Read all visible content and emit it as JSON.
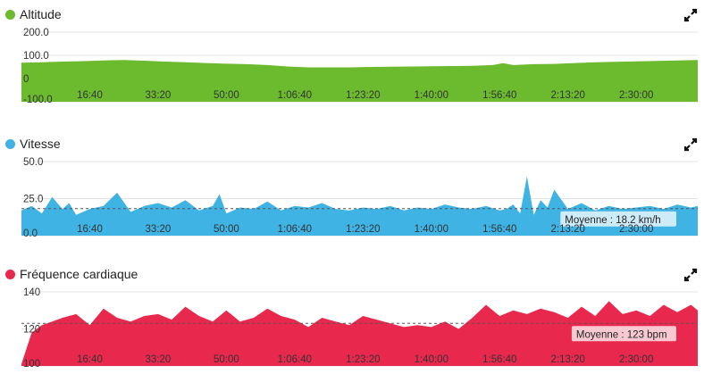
{
  "chart_data": [
    {
      "type": "area",
      "title": "Altitude",
      "color": "#6cba2d",
      "x_ticks": [
        "16:40",
        "33:20",
        "50:00",
        "1:06:40",
        "1:23:20",
        "1:40:00",
        "1:56:40",
        "2:13:20",
        "2:30:00"
      ],
      "y_ticks": [
        "200.0",
        "100.0",
        "0",
        "-100.0"
      ],
      "y_tick_values": [
        200,
        100,
        0,
        -100
      ],
      "ylim": [
        -100,
        200
      ],
      "x_range_seconds": [
        0,
        9900
      ],
      "x_tick_seconds": [
        1000,
        2000,
        3000,
        4000,
        5000,
        6000,
        7000,
        8000,
        9000
      ],
      "series": [
        {
          "x": [
            0,
            300,
            600,
            900,
            1200,
            1500,
            1800,
            2100,
            2400,
            2700,
            3000,
            3300,
            3600,
            3900,
            4200,
            4500,
            4800,
            5100,
            5400,
            5700,
            6000,
            6300,
            6600,
            6900,
            7050,
            7200,
            7500,
            7800,
            8100,
            8400,
            8700,
            9000,
            9300,
            9600,
            9900
          ],
          "y": [
            68,
            70,
            73,
            75,
            78,
            80,
            77,
            73,
            70,
            67,
            64,
            62,
            58,
            52,
            48,
            48,
            48,
            50,
            51,
            52,
            53,
            54,
            55,
            58,
            66,
            58,
            62,
            63,
            67,
            70,
            72,
            74,
            76,
            78,
            80
          ]
        }
      ]
    },
    {
      "type": "area",
      "title": "Vitesse",
      "color": "#3eb3e4",
      "x_ticks": [
        "16:40",
        "33:20",
        "50:00",
        "1:06:40",
        "1:23:20",
        "1:40:00",
        "1:56:40",
        "2:13:20",
        "2:30:00"
      ],
      "y_ticks": [
        "50.0",
        "25.0",
        "0.0"
      ],
      "y_tick_values": [
        50,
        25,
        0
      ],
      "ylim": [
        0,
        50
      ],
      "x_range_seconds": [
        0,
        9900
      ],
      "x_tick_seconds": [
        1000,
        2000,
        3000,
        4000,
        5000,
        6000,
        7000,
        8000,
        9000
      ],
      "average": {
        "value": 18.2,
        "label": "Moyenne : 18.2 km/h"
      },
      "series": [
        {
          "x": [
            0,
            150,
            300,
            450,
            600,
            700,
            800,
            1000,
            1200,
            1400,
            1600,
            1800,
            2000,
            2200,
            2400,
            2600,
            2800,
            2900,
            3000,
            3200,
            3400,
            3600,
            3800,
            4000,
            4200,
            4400,
            4600,
            4800,
            5000,
            5200,
            5400,
            5600,
            5800,
            6000,
            6200,
            6400,
            6600,
            6800,
            7000,
            7100,
            7200,
            7300,
            7400,
            7500,
            7600,
            7700,
            7800,
            8000,
            8200,
            8400,
            8600,
            8800,
            9000,
            9200,
            9400,
            9600,
            9800,
            9900
          ],
          "y": [
            17,
            20,
            15,
            26,
            18,
            22,
            14,
            18,
            20,
            29,
            16,
            20,
            22,
            19,
            24,
            17,
            20,
            28,
            15,
            19,
            18,
            23,
            17,
            20,
            19,
            22,
            18,
            17,
            19,
            18,
            20,
            17,
            19,
            18,
            21,
            19,
            18,
            20,
            17,
            18,
            21,
            15,
            40,
            14,
            24,
            19,
            31,
            18,
            22,
            17,
            20,
            18,
            19,
            20,
            18,
            21,
            19,
            20
          ]
        }
      ]
    },
    {
      "type": "area",
      "title": "Fréquence cardiaque",
      "color": "#e8294d",
      "x_ticks": [
        "16:40",
        "33:20",
        "50:00",
        "1:06:40",
        "1:23:20",
        "1:40:00",
        "1:56:40",
        "2:13:20",
        "2:30:00"
      ],
      "y_ticks": [
        "140",
        "120",
        "100"
      ],
      "y_tick_values": [
        140,
        120,
        100
      ],
      "ylim": [
        100,
        140
      ],
      "x_range_seconds": [
        0,
        9900
      ],
      "x_tick_seconds": [
        1000,
        2000,
        3000,
        4000,
        5000,
        6000,
        7000,
        8000,
        9000
      ],
      "average": {
        "value": 123,
        "label": "Moyenne : 123 bpm"
      },
      "series": [
        {
          "x": [
            0,
            150,
            300,
            450,
            600,
            800,
            1000,
            1200,
            1400,
            1600,
            1800,
            2000,
            2200,
            2400,
            2600,
            2800,
            3000,
            3200,
            3400,
            3600,
            3800,
            4000,
            4200,
            4400,
            4600,
            4800,
            5000,
            5200,
            5400,
            5600,
            5800,
            6000,
            6200,
            6400,
            6600,
            6800,
            7000,
            7200,
            7400,
            7600,
            7800,
            8000,
            8200,
            8400,
            8600,
            8800,
            9000,
            9200,
            9400,
            9600,
            9800,
            9900
          ],
          "y": [
            101,
            118,
            122,
            124,
            126,
            128,
            122,
            131,
            126,
            124,
            127,
            128,
            125,
            132,
            127,
            124,
            130,
            124,
            126,
            131,
            127,
            125,
            121,
            126,
            124,
            122,
            127,
            125,
            123,
            121,
            122,
            121,
            124,
            120,
            126,
            133,
            127,
            130,
            128,
            131,
            129,
            126,
            132,
            127,
            135,
            128,
            130,
            127,
            133,
            129,
            133,
            130
          ]
        }
      ]
    }
  ]
}
